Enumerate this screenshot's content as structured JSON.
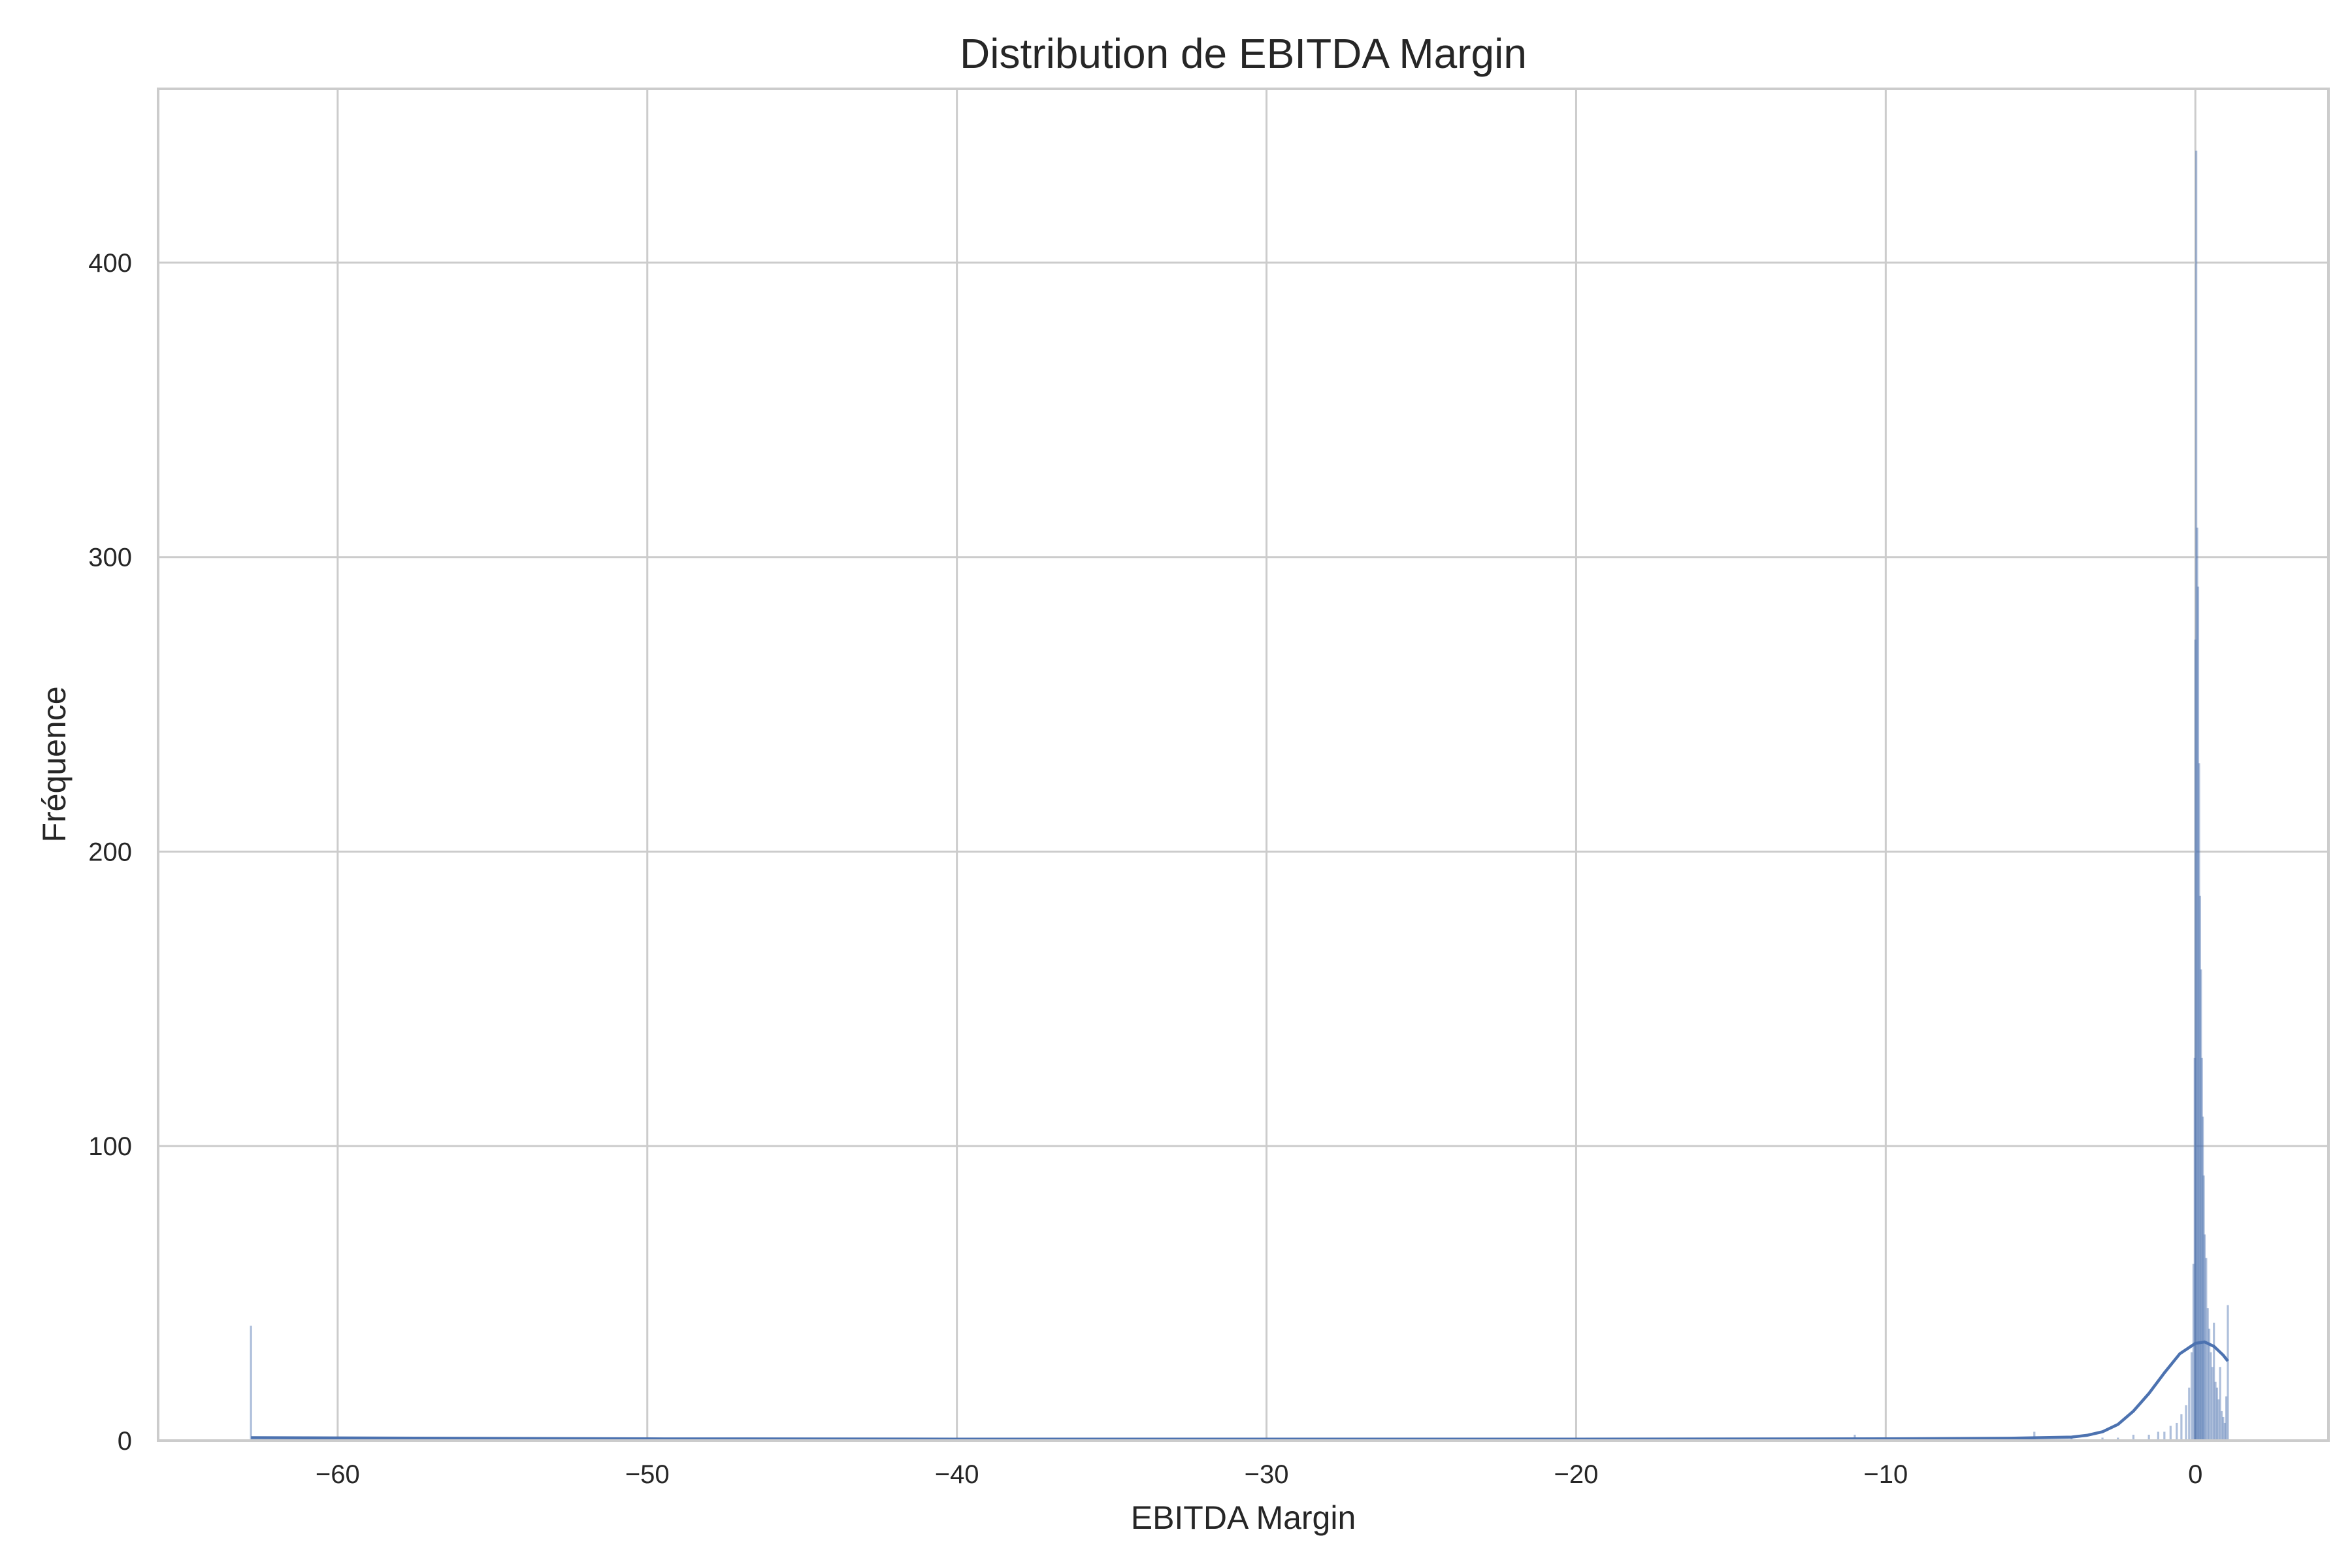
{
  "chart_data": {
    "type": "histogram",
    "title": "Distribution de EBITDA Margin",
    "xlabel": "EBITDA Margin",
    "ylabel": "Fréquence",
    "xlim": [
      -65.8,
      4.3
    ],
    "ylim": [
      0,
      459
    ],
    "x_ticks": [
      -60,
      -50,
      -40,
      -30,
      -20,
      -10,
      0
    ],
    "x_tick_labels": [
      "−60",
      "−50",
      "−40",
      "−30",
      "−20",
      "−10",
      "0"
    ],
    "y_ticks": [
      0,
      100,
      200,
      300,
      400
    ],
    "y_tick_labels": [
      "0",
      "100",
      "200",
      "300",
      "400"
    ],
    "grid": true,
    "series_color": "#4c72b0",
    "kde_color": "#4c72b0",
    "bins": [
      {
        "x": -62.8,
        "count": 39
      },
      {
        "x": -20.0,
        "count": 1
      },
      {
        "x": -15.0,
        "count": 1
      },
      {
        "x": -11.0,
        "count": 2
      },
      {
        "x": -8.0,
        "count": 1
      },
      {
        "x": -5.2,
        "count": 3
      },
      {
        "x": -4.0,
        "count": 1
      },
      {
        "x": -3.0,
        "count": 1
      },
      {
        "x": -2.5,
        "count": 1
      },
      {
        "x": -2.0,
        "count": 2
      },
      {
        "x": -1.5,
        "count": 2
      },
      {
        "x": -1.2,
        "count": 3
      },
      {
        "x": -1.0,
        "count": 3
      },
      {
        "x": -0.8,
        "count": 5
      },
      {
        "x": -0.6,
        "count": 6
      },
      {
        "x": -0.45,
        "count": 9
      },
      {
        "x": -0.3,
        "count": 12
      },
      {
        "x": -0.2,
        "count": 18
      },
      {
        "x": -0.12,
        "count": 30
      },
      {
        "x": -0.06,
        "count": 60
      },
      {
        "x": -0.02,
        "count": 130
      },
      {
        "x": 0.0,
        "count": 272
      },
      {
        "x": 0.03,
        "count": 438
      },
      {
        "x": 0.06,
        "count": 310
      },
      {
        "x": 0.09,
        "count": 290
      },
      {
        "x": 0.12,
        "count": 230
      },
      {
        "x": 0.15,
        "count": 185
      },
      {
        "x": 0.18,
        "count": 160
      },
      {
        "x": 0.21,
        "count": 130
      },
      {
        "x": 0.24,
        "count": 110
      },
      {
        "x": 0.27,
        "count": 90
      },
      {
        "x": 0.3,
        "count": 70
      },
      {
        "x": 0.35,
        "count": 62
      },
      {
        "x": 0.4,
        "count": 45
      },
      {
        "x": 0.45,
        "count": 38
      },
      {
        "x": 0.5,
        "count": 30
      },
      {
        "x": 0.55,
        "count": 25
      },
      {
        "x": 0.6,
        "count": 40
      },
      {
        "x": 0.65,
        "count": 20
      },
      {
        "x": 0.7,
        "count": 18
      },
      {
        "x": 0.75,
        "count": 14
      },
      {
        "x": 0.8,
        "count": 25
      },
      {
        "x": 0.85,
        "count": 10
      },
      {
        "x": 0.9,
        "count": 8
      },
      {
        "x": 0.95,
        "count": 6
      },
      {
        "x": 1.0,
        "count": 15
      },
      {
        "x": 1.05,
        "count": 46
      }
    ],
    "kde": [
      {
        "x": -62.8,
        "y": 1.0
      },
      {
        "x": -50,
        "y": 0.6
      },
      {
        "x": -40,
        "y": 0.5
      },
      {
        "x": -30,
        "y": 0.5
      },
      {
        "x": -20,
        "y": 0.5
      },
      {
        "x": -10,
        "y": 0.6
      },
      {
        "x": -6,
        "y": 0.8
      },
      {
        "x": -4,
        "y": 1.2
      },
      {
        "x": -3.5,
        "y": 1.8
      },
      {
        "x": -3,
        "y": 3
      },
      {
        "x": -2.5,
        "y": 5.5
      },
      {
        "x": -2,
        "y": 10
      },
      {
        "x": -1.5,
        "y": 16
      },
      {
        "x": -1,
        "y": 23
      },
      {
        "x": -0.5,
        "y": 29.5
      },
      {
        "x": 0,
        "y": 33
      },
      {
        "x": 0.3,
        "y": 33.5
      },
      {
        "x": 0.6,
        "y": 32
      },
      {
        "x": 0.9,
        "y": 29
      },
      {
        "x": 1.05,
        "y": 27
      }
    ]
  }
}
